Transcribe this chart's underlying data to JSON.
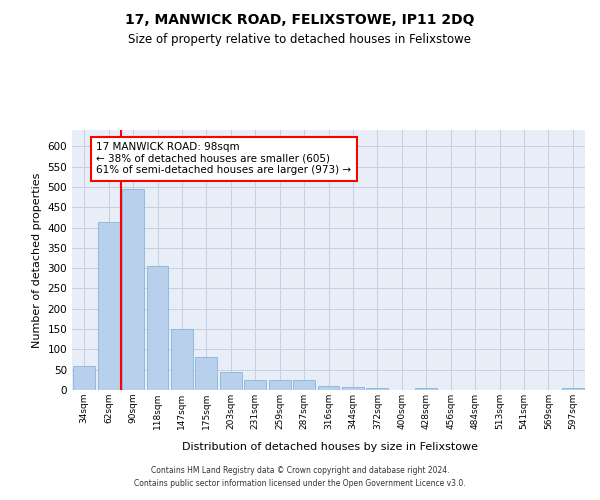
{
  "title": "17, MANWICK ROAD, FELIXSTOWE, IP11 2DQ",
  "subtitle": "Size of property relative to detached houses in Felixstowe",
  "xlabel": "Distribution of detached houses by size in Felixstowe",
  "ylabel": "Number of detached properties",
  "bar_color": "#b8d0eb",
  "bar_edge_color": "#7aadd4",
  "background_color": "#e8eef8",
  "grid_color": "#c5cfe0",
  "categories": [
    "34sqm",
    "62sqm",
    "90sqm",
    "118sqm",
    "147sqm",
    "175sqm",
    "203sqm",
    "231sqm",
    "259sqm",
    "287sqm",
    "316sqm",
    "344sqm",
    "372sqm",
    "400sqm",
    "428sqm",
    "456sqm",
    "484sqm",
    "513sqm",
    "541sqm",
    "569sqm",
    "597sqm"
  ],
  "values": [
    58,
    413,
    495,
    305,
    150,
    82,
    45,
    25,
    25,
    25,
    10,
    8,
    5,
    0,
    5,
    0,
    0,
    0,
    0,
    0,
    5
  ],
  "annotation_text": "17 MANWICK ROAD: 98sqm\n← 38% of detached houses are smaller (605)\n61% of semi-detached houses are larger (973) →",
  "annotation_box_color": "white",
  "annotation_box_edge_color": "red",
  "vline_x_index": 2,
  "vline_color": "red",
  "ylim": [
    0,
    640
  ],
  "yticks": [
    0,
    50,
    100,
    150,
    200,
    250,
    300,
    350,
    400,
    450,
    500,
    550,
    600
  ],
  "footer_line1": "Contains HM Land Registry data © Crown copyright and database right 2024.",
  "footer_line2": "Contains public sector information licensed under the Open Government Licence v3.0."
}
